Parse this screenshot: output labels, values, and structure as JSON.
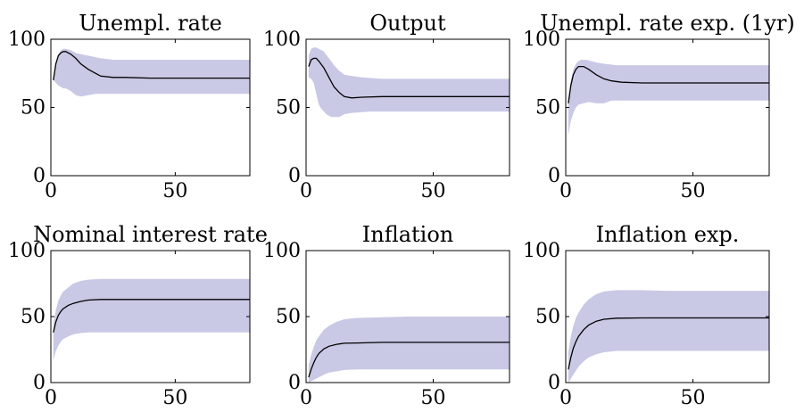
{
  "figure": {
    "band_color": "#c9c9e6",
    "line_color": "#000000",
    "axis_color": "#000000"
  },
  "chart_data": [
    {
      "type": "line",
      "title": "Unempl. rate",
      "xlim": [
        0,
        80
      ],
      "ylim": [
        0,
        100
      ],
      "xticks": [
        0,
        50
      ],
      "yticks": [
        0,
        50,
        100
      ],
      "median": [
        [
          1,
          70
        ],
        [
          2,
          82
        ],
        [
          3,
          88
        ],
        [
          4,
          90
        ],
        [
          5,
          91
        ],
        [
          6,
          91
        ],
        [
          8,
          89
        ],
        [
          10,
          86
        ],
        [
          12,
          82
        ],
        [
          15,
          78
        ],
        [
          18,
          75
        ],
        [
          20,
          73
        ],
        [
          25,
          72
        ],
        [
          30,
          72
        ],
        [
          40,
          71.5
        ],
        [
          50,
          71.5
        ],
        [
          60,
          71.5
        ],
        [
          70,
          71.5
        ],
        [
          80,
          71.5
        ]
      ],
      "band_upper": [
        [
          1,
          70
        ],
        [
          2,
          83
        ],
        [
          3,
          89
        ],
        [
          4,
          92
        ],
        [
          5,
          93
        ],
        [
          6,
          93
        ],
        [
          8,
          92
        ],
        [
          10,
          90
        ],
        [
          12,
          89
        ],
        [
          15,
          88
        ],
        [
          20,
          86
        ],
        [
          25,
          85
        ],
        [
          30,
          85
        ],
        [
          40,
          85
        ],
        [
          60,
          85
        ],
        [
          80,
          85
        ]
      ],
      "band_lower": [
        [
          1,
          70
        ],
        [
          2,
          68
        ],
        [
          3,
          66
        ],
        [
          4,
          65
        ],
        [
          5,
          64
        ],
        [
          6,
          64
        ],
        [
          8,
          62
        ],
        [
          10,
          59
        ],
        [
          12,
          58
        ],
        [
          15,
          59
        ],
        [
          18,
          60
        ],
        [
          25,
          60
        ],
        [
          40,
          60
        ],
        [
          60,
          60
        ],
        [
          80,
          60
        ]
      ]
    },
    {
      "type": "line",
      "title": "Output",
      "xlim": [
        0,
        80
      ],
      "ylim": [
        0,
        100
      ],
      "xticks": [
        0,
        50
      ],
      "yticks": [
        0,
        50,
        100
      ],
      "median": [
        [
          1,
          80
        ],
        [
          2,
          85
        ],
        [
          3,
          86
        ],
        [
          4,
          86
        ],
        [
          5,
          84
        ],
        [
          7,
          79
        ],
        [
          9,
          72
        ],
        [
          11,
          65
        ],
        [
          13,
          61
        ],
        [
          15,
          58
        ],
        [
          18,
          57
        ],
        [
          22,
          57.5
        ],
        [
          30,
          58
        ],
        [
          40,
          58
        ],
        [
          60,
          58
        ],
        [
          80,
          58
        ]
      ],
      "band_upper": [
        [
          1,
          88
        ],
        [
          2,
          93
        ],
        [
          3,
          94
        ],
        [
          4,
          94
        ],
        [
          5,
          93
        ],
        [
          7,
          91
        ],
        [
          9,
          86
        ],
        [
          11,
          81
        ],
        [
          13,
          77
        ],
        [
          15,
          74
        ],
        [
          18,
          73
        ],
        [
          22,
          72
        ],
        [
          30,
          71
        ],
        [
          40,
          71
        ],
        [
          60,
          71
        ],
        [
          80,
          71
        ]
      ],
      "band_lower": [
        [
          1,
          72
        ],
        [
          2,
          71
        ],
        [
          3,
          68
        ],
        [
          4,
          60
        ],
        [
          5,
          52
        ],
        [
          6,
          49
        ],
        [
          8,
          45
        ],
        [
          10,
          43
        ],
        [
          13,
          43
        ],
        [
          15,
          45
        ],
        [
          18,
          46
        ],
        [
          25,
          47
        ],
        [
          30,
          47
        ],
        [
          40,
          47
        ],
        [
          60,
          47
        ],
        [
          80,
          47
        ]
      ]
    },
    {
      "type": "line",
      "title": "Unempl. rate exp. (1yr)",
      "xlim": [
        0,
        80
      ],
      "ylim": [
        0,
        100
      ],
      "xticks": [
        0,
        50
      ],
      "yticks": [
        0,
        50,
        100
      ],
      "median": [
        [
          1,
          53
        ],
        [
          2,
          66
        ],
        [
          3,
          74
        ],
        [
          4,
          78
        ],
        [
          5,
          80
        ],
        [
          7,
          80
        ],
        [
          9,
          78
        ],
        [
          12,
          74
        ],
        [
          15,
          71
        ],
        [
          18,
          69.5
        ],
        [
          22,
          68.5
        ],
        [
          30,
          68
        ],
        [
          40,
          68
        ],
        [
          60,
          68
        ],
        [
          80,
          68
        ]
      ],
      "band_upper": [
        [
          1,
          56
        ],
        [
          2,
          70
        ],
        [
          3,
          78
        ],
        [
          4,
          82
        ],
        [
          5,
          84
        ],
        [
          6,
          85
        ],
        [
          8,
          85
        ],
        [
          10,
          84
        ],
        [
          12,
          83
        ],
        [
          15,
          82
        ],
        [
          20,
          81
        ],
        [
          30,
          81
        ],
        [
          40,
          81
        ],
        [
          60,
          81
        ],
        [
          80,
          81
        ]
      ],
      "band_lower": [
        [
          1,
          30
        ],
        [
          2,
          40
        ],
        [
          3,
          46
        ],
        [
          4,
          50
        ],
        [
          5,
          52
        ],
        [
          7,
          53
        ],
        [
          9,
          54
        ],
        [
          12,
          53
        ],
        [
          15,
          53
        ],
        [
          18,
          55
        ],
        [
          25,
          55
        ],
        [
          40,
          55
        ],
        [
          60,
          55
        ],
        [
          80,
          55
        ]
      ]
    },
    {
      "type": "line",
      "title": "Nominal interest rate",
      "xlim": [
        0,
        80
      ],
      "ylim": [
        0,
        100
      ],
      "xticks": [
        0,
        50
      ],
      "yticks": [
        0,
        50,
        100
      ],
      "median": [
        [
          1,
          38
        ],
        [
          2,
          46
        ],
        [
          3,
          51
        ],
        [
          4,
          54
        ],
        [
          5,
          56
        ],
        [
          7,
          58.5
        ],
        [
          9,
          60
        ],
        [
          12,
          61.5
        ],
        [
          15,
          62.5
        ],
        [
          20,
          63
        ],
        [
          30,
          63
        ],
        [
          40,
          63
        ],
        [
          60,
          63
        ],
        [
          80,
          63
        ]
      ],
      "band_upper": [
        [
          1,
          45
        ],
        [
          2,
          55
        ],
        [
          3,
          62
        ],
        [
          4,
          66
        ],
        [
          5,
          69
        ],
        [
          7,
          72
        ],
        [
          9,
          75
        ],
        [
          12,
          77
        ],
        [
          15,
          78
        ],
        [
          20,
          78.5
        ],
        [
          30,
          78.5
        ],
        [
          40,
          78.5
        ],
        [
          60,
          78.5
        ],
        [
          80,
          78.5
        ]
      ],
      "band_lower": [
        [
          1,
          17
        ],
        [
          2,
          24
        ],
        [
          3,
          28
        ],
        [
          4,
          31
        ],
        [
          5,
          33
        ],
        [
          7,
          35
        ],
        [
          9,
          36.5
        ],
        [
          12,
          37.5
        ],
        [
          15,
          38
        ],
        [
          20,
          38
        ],
        [
          40,
          38
        ],
        [
          60,
          38
        ],
        [
          80,
          38
        ]
      ]
    },
    {
      "type": "line",
      "title": "Inflation",
      "xlim": [
        0,
        80
      ],
      "ylim": [
        0,
        100
      ],
      "xticks": [
        0,
        50
      ],
      "yticks": [
        0,
        50,
        100
      ],
      "median": [
        [
          1,
          4
        ],
        [
          2,
          10
        ],
        [
          3,
          15
        ],
        [
          4,
          19
        ],
        [
          5,
          22
        ],
        [
          7,
          25.5
        ],
        [
          9,
          27.5
        ],
        [
          12,
          29
        ],
        [
          15,
          29.8
        ],
        [
          20,
          30
        ],
        [
          30,
          30.5
        ],
        [
          40,
          30.5
        ],
        [
          60,
          30.5
        ],
        [
          80,
          30.5
        ]
      ],
      "band_upper": [
        [
          1,
          13
        ],
        [
          2,
          21
        ],
        [
          3,
          27
        ],
        [
          4,
          32
        ],
        [
          5,
          35
        ],
        [
          7,
          40
        ],
        [
          9,
          43
        ],
        [
          12,
          46
        ],
        [
          15,
          48
        ],
        [
          20,
          49
        ],
        [
          30,
          49.5
        ],
        [
          40,
          50
        ],
        [
          60,
          50
        ],
        [
          80,
          50
        ]
      ],
      "band_lower": [
        [
          1,
          0
        ],
        [
          2,
          1
        ],
        [
          3,
          2
        ],
        [
          4,
          3
        ],
        [
          5,
          4
        ],
        [
          7,
          6
        ],
        [
          9,
          7.5
        ],
        [
          12,
          8.5
        ],
        [
          15,
          9.5
        ],
        [
          20,
          10
        ],
        [
          30,
          10
        ],
        [
          60,
          10
        ],
        [
          80,
          10
        ]
      ]
    },
    {
      "type": "line",
      "title": "Inflation exp.",
      "xlim": [
        0,
        80
      ],
      "ylim": [
        0,
        100
      ],
      "xticks": [
        0,
        50
      ],
      "yticks": [
        0,
        50,
        100
      ],
      "median": [
        [
          1,
          10
        ],
        [
          2,
          19
        ],
        [
          3,
          26
        ],
        [
          4,
          31
        ],
        [
          5,
          35
        ],
        [
          7,
          40
        ],
        [
          9,
          43.5
        ],
        [
          12,
          46.5
        ],
        [
          15,
          48
        ],
        [
          20,
          48.8
        ],
        [
          30,
          49
        ],
        [
          40,
          49
        ],
        [
          60,
          49
        ],
        [
          80,
          49
        ]
      ],
      "band_upper": [
        [
          1,
          23
        ],
        [
          2,
          35
        ],
        [
          3,
          43
        ],
        [
          4,
          49
        ],
        [
          5,
          53
        ],
        [
          7,
          59
        ],
        [
          9,
          63
        ],
        [
          12,
          67
        ],
        [
          15,
          69
        ],
        [
          20,
          70
        ],
        [
          30,
          70
        ],
        [
          40,
          69.5
        ],
        [
          60,
          69.5
        ],
        [
          80,
          69.5
        ]
      ],
      "band_lower": [
        [
          1,
          0
        ],
        [
          2,
          3
        ],
        [
          3,
          6
        ],
        [
          4,
          9
        ],
        [
          5,
          12
        ],
        [
          7,
          16
        ],
        [
          9,
          19
        ],
        [
          12,
          21.5
        ],
        [
          15,
          23
        ],
        [
          20,
          24
        ],
        [
          30,
          24
        ],
        [
          60,
          24
        ],
        [
          80,
          24
        ]
      ]
    }
  ]
}
